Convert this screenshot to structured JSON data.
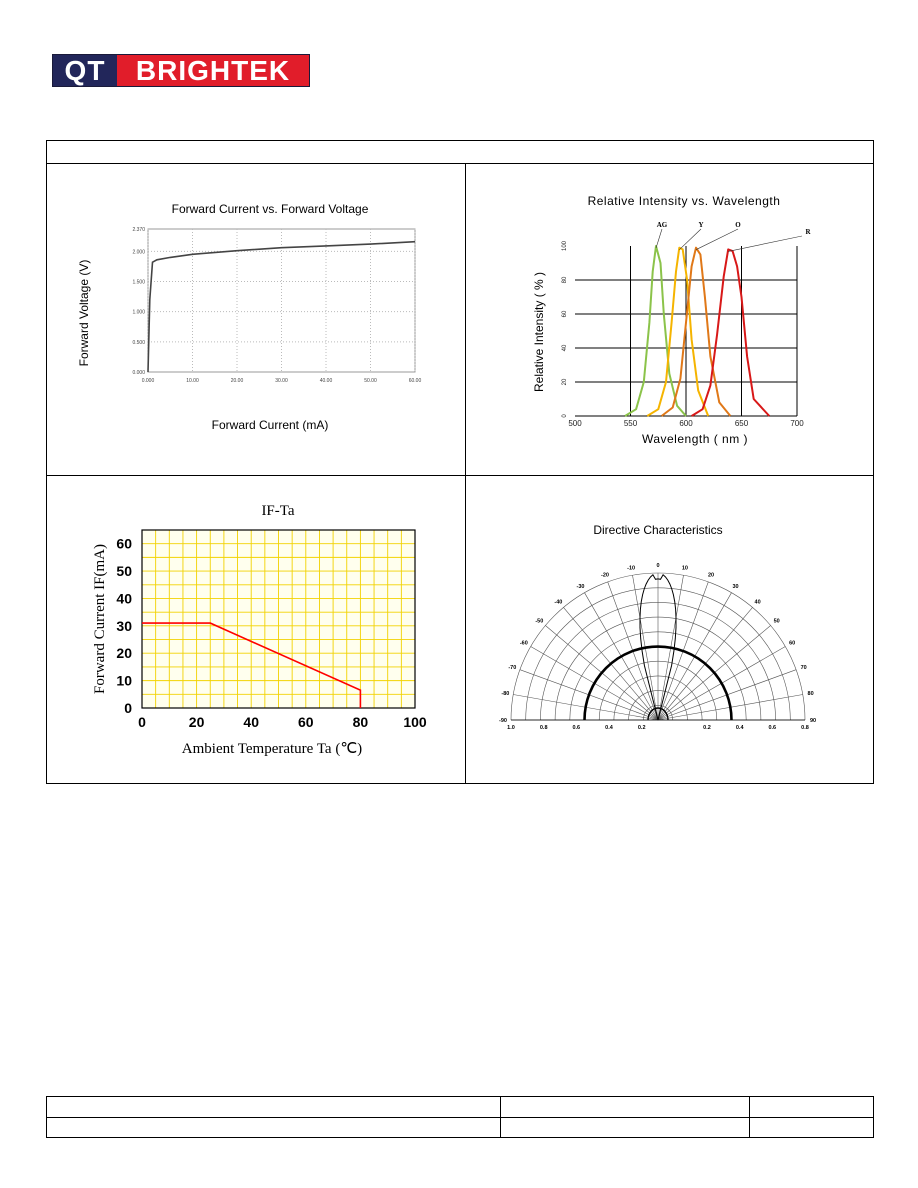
{
  "logo": {
    "part1": "QT",
    "part2": "BRIGHTEK"
  },
  "chart_data": [
    {
      "type": "line",
      "title": "Forward Current vs. Forward Voltage",
      "xlabel": "Forward Current (mA)",
      "ylabel": "Forward Voltage (V)",
      "xticks": [
        "0.000",
        "10.00",
        "20.00",
        "30.00",
        "40.00",
        "50.00",
        "60.00"
      ],
      "yticks": [
        "0.000",
        "0.500",
        "1.000",
        "1.500",
        "2.000",
        "2.370"
      ],
      "xlim": [
        0,
        60
      ],
      "ylim": [
        0,
        2.37
      ],
      "grid": true,
      "series": [
        {
          "color": "#444444",
          "points": [
            [
              0,
              0
            ],
            [
              0.4,
              1.2
            ],
            [
              1,
              1.82
            ],
            [
              2,
              1.86
            ],
            [
              5,
              1.9
            ],
            [
              10,
              1.95
            ],
            [
              20,
              2.01
            ],
            [
              30,
              2.06
            ],
            [
              40,
              2.09
            ],
            [
              50,
              2.12
            ],
            [
              60,
              2.16
            ]
          ]
        }
      ]
    },
    {
      "type": "line",
      "title": "Relative Intensity vs. Wavelength",
      "xlabel": "Wavelength ( nm )",
      "ylabel": "Relative Intensity ( % )",
      "xticks": [
        "500",
        "550",
        "600",
        "650",
        "700"
      ],
      "yticks": [
        "0",
        "20",
        "40",
        "60",
        "80",
        "100"
      ],
      "xlim": [
        500,
        700
      ],
      "ylim": [
        0,
        100
      ],
      "grid": true,
      "series": [
        {
          "name": "AG",
          "color": "#8bc34a",
          "points": [
            [
              545,
              0
            ],
            [
              555,
              4
            ],
            [
              562,
              20
            ],
            [
              567,
              55
            ],
            [
              570,
              85
            ],
            [
              573,
              100
            ],
            [
              577,
              90
            ],
            [
              580,
              60
            ],
            [
              585,
              25
            ],
            [
              592,
              6
            ],
            [
              600,
              0
            ]
          ]
        },
        {
          "name": "Y",
          "color": "#f5b400",
          "points": [
            [
              565,
              0
            ],
            [
              575,
              4
            ],
            [
              582,
              20
            ],
            [
              587,
              55
            ],
            [
              591,
              85
            ],
            [
              594,
              99
            ],
            [
              597,
              98
            ],
            [
              601,
              80
            ],
            [
              605,
              45
            ],
            [
              611,
              15
            ],
            [
              620,
              0
            ]
          ]
        },
        {
          "name": "O",
          "color": "#e07818",
          "points": [
            [
              578,
              0
            ],
            [
              588,
              5
            ],
            [
              595,
              22
            ],
            [
              600,
              55
            ],
            [
              605,
              88
            ],
            [
              609,
              99
            ],
            [
              613,
              95
            ],
            [
              617,
              70
            ],
            [
              622,
              35
            ],
            [
              630,
              8
            ],
            [
              640,
              0
            ]
          ]
        },
        {
          "name": "R",
          "color": "#d81818",
          "points": [
            [
              605,
              0
            ],
            [
              615,
              4
            ],
            [
              622,
              18
            ],
            [
              628,
              48
            ],
            [
              634,
              82
            ],
            [
              638,
              98
            ],
            [
              642,
              97
            ],
            [
              646,
              88
            ],
            [
              650,
              70
            ],
            [
              655,
              35
            ],
            [
              661,
              10
            ],
            [
              675,
              0
            ]
          ]
        }
      ]
    },
    {
      "type": "line",
      "title": "IF-Ta",
      "xlabel": "Ambient Temperature Ta (℃)",
      "ylabel": "Forward Current IF(mA)",
      "xticks": [
        "0",
        "20",
        "40",
        "60",
        "80",
        "100"
      ],
      "yticks": [
        "0",
        "10",
        "20",
        "30",
        "40",
        "50",
        "60"
      ],
      "xlim": [
        0,
        100
      ],
      "ylim": [
        0,
        65
      ],
      "grid": true,
      "series": [
        {
          "color": "#ff0000",
          "points": [
            [
              0,
              31
            ],
            [
              25,
              31
            ],
            [
              80,
              6.5
            ],
            [
              80,
              0
            ]
          ]
        }
      ]
    },
    {
      "type": "polar",
      "title": "Directive Characteristics",
      "angle_labels": [
        "0",
        "10",
        "20",
        "30",
        "40",
        "50",
        "60",
        "70",
        "80",
        "90"
      ],
      "radial_labels": [
        "1.0",
        "0.8",
        "0.6",
        "0.4",
        "0.2",
        "0.2",
        "0.4",
        "0.6",
        "0.8",
        "1.0"
      ],
      "radial_range": [
        0,
        1.0
      ],
      "highlight_radius": 0.5
    }
  ]
}
